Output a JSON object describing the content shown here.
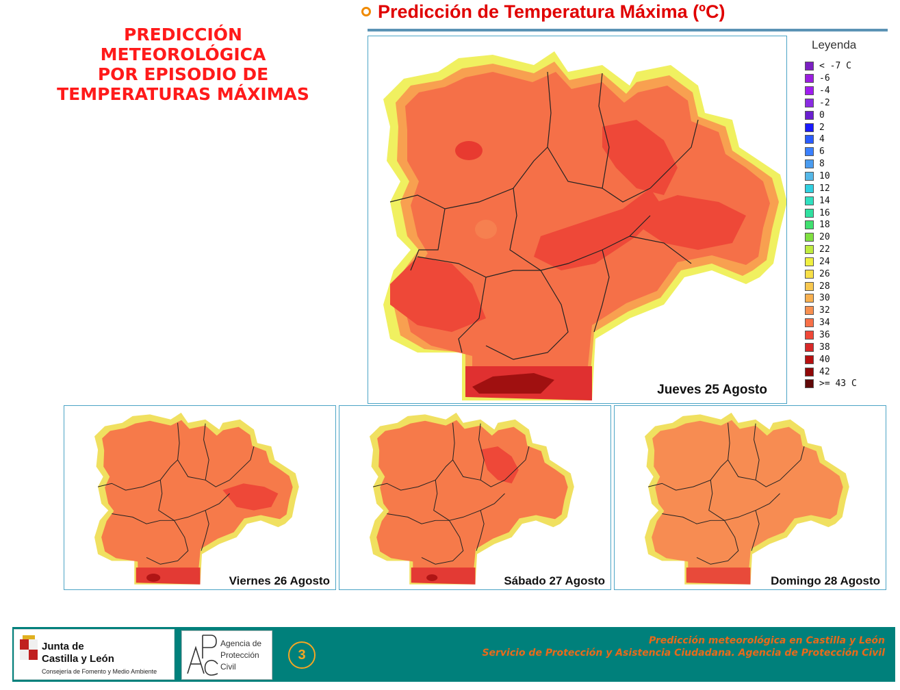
{
  "side_title": {
    "lines": [
      "PREDICCIÓN",
      "METEOROLÓGICA",
      "POR EPISODIO DE",
      "TEMPERATURAS MÁXIMAS"
    ]
  },
  "header": {
    "title": "Predicción de Temperatura Máxima (ºC)",
    "bullet_icon": "circle-outline-icon",
    "accent_color": "#e00000"
  },
  "main_map": {
    "caption": "Jueves 25 Agosto"
  },
  "panels": [
    {
      "caption": "Viernes 26 Agosto"
    },
    {
      "caption": "Sábado 27 Agosto"
    },
    {
      "caption": "Domingo 28 Agosto"
    }
  ],
  "legend": {
    "title": "Leyenda",
    "items": [
      {
        "label": "< -7 C",
        "color": "#7b1fc2"
      },
      {
        "label": "-6",
        "color": "#9b1de0"
      },
      {
        "label": "-4",
        "color": "#a01cf0"
      },
      {
        "label": "-2",
        "color": "#8a2be2"
      },
      {
        "label": "0",
        "color": "#6a1fd0"
      },
      {
        "label": "2",
        "color": "#1a1aff"
      },
      {
        "label": "4",
        "color": "#2a5cff"
      },
      {
        "label": "6",
        "color": "#3a80ff"
      },
      {
        "label": "8",
        "color": "#4a9cf0"
      },
      {
        "label": "10",
        "color": "#55b8e8"
      },
      {
        "label": "12",
        "color": "#30d0e0"
      },
      {
        "label": "14",
        "color": "#30e0c0"
      },
      {
        "label": "16",
        "color": "#30e0a0"
      },
      {
        "label": "18",
        "color": "#40e070"
      },
      {
        "label": "20",
        "color": "#80e040"
      },
      {
        "label": "22",
        "color": "#c0ec40"
      },
      {
        "label": "24",
        "color": "#f0f040"
      },
      {
        "label": "26",
        "color": "#f8e048"
      },
      {
        "label": "28",
        "color": "#f8c850"
      },
      {
        "label": "30",
        "color": "#f8b050"
      },
      {
        "label": "32",
        "color": "#f89050"
      },
      {
        "label": "34",
        "color": "#f87048"
      },
      {
        "label": "36",
        "color": "#f04838"
      },
      {
        "label": "38",
        "color": "#d82828"
      },
      {
        "label": "40",
        "color": "#b81010"
      },
      {
        "label": "42",
        "color": "#900808"
      },
      {
        "label": ">= 43 C",
        "color": "#600808"
      }
    ]
  },
  "footer": {
    "junta_name_line1": "Junta de",
    "junta_name_line2": "Castilla y León",
    "junta_sub": "Consejería de Fomento y Medio Ambiente",
    "apc_line1": "Agencia de",
    "apc_line2": "Protección",
    "apc_line3": "Civil",
    "page_number": "3",
    "text_line1": "Predicción meteorológica en Castilla y León",
    "text_line2": "Servicio de Protección y Asistencia Ciudadana. Agencia de Protección Civil",
    "bar_color": "#00807b",
    "text_color": "#e86a1a"
  }
}
